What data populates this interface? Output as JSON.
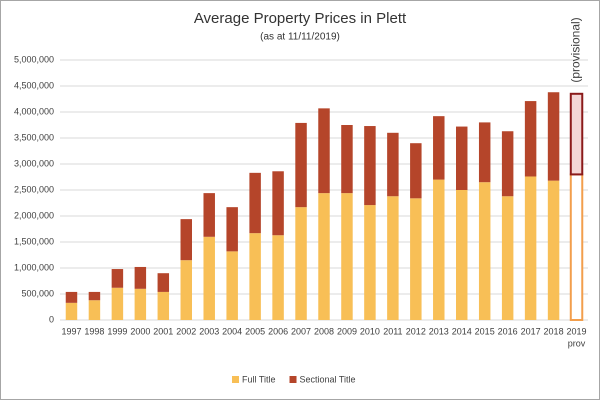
{
  "chart_data": {
    "type": "stacked_bar",
    "title": "Average Property Prices in Plett",
    "subtitle": "(as at 11/11/2019)",
    "annotation": "(provisional)",
    "categories": [
      "1997",
      "1998",
      "1999",
      "2000",
      "2001",
      "2002",
      "2003",
      "2004",
      "2005",
      "2006",
      "2007",
      "2008",
      "2009",
      "2010",
      "2011",
      "2012",
      "2013",
      "2014",
      "2015",
      "2016",
      "2017",
      "2018",
      "2019"
    ],
    "last_category_note": "prov",
    "outline_last_bar": true,
    "series": [
      {
        "name": "Full Title",
        "color": "#f8bf56",
        "values": [
          330000,
          380000,
          620000,
          600000,
          540000,
          1150000,
          1600000,
          1320000,
          1670000,
          1630000,
          2170000,
          2440000,
          2440000,
          2210000,
          2380000,
          2340000,
          2700000,
          2500000,
          2650000,
          2380000,
          2760000,
          2680000,
          2800000
        ]
      },
      {
        "name": "Sectional Title",
        "color": "#b5452a",
        "values": [
          210000,
          160000,
          360000,
          420000,
          360000,
          790000,
          840000,
          850000,
          1160000,
          1230000,
          1620000,
          1630000,
          1310000,
          1520000,
          1220000,
          1060000,
          1220000,
          1220000,
          1150000,
          1250000,
          1450000,
          1700000,
          1550000
        ]
      }
    ],
    "ylim": [
      0,
      5000000
    ],
    "yticks": [
      0,
      {
        "value": 500000,
        "label": "500,000"
      },
      {
        "value": 1000000,
        "label": "1,000,000"
      },
      {
        "value": 1500000,
        "label": "1,500,000"
      },
      {
        "value": 2000000,
        "label": "2,000,000"
      },
      {
        "value": 2500000,
        "label": "2,500,000"
      },
      {
        "value": 3000000,
        "label": "3,000,000"
      },
      {
        "value": 3500000,
        "label": "3,500,000"
      },
      {
        "value": 4000000,
        "label": "4,000,000"
      },
      {
        "value": 4500000,
        "label": "4,500,000"
      },
      {
        "value": 5000000,
        "label": "5,000,000"
      }
    ],
    "grid": true,
    "legend": "bottom"
  }
}
